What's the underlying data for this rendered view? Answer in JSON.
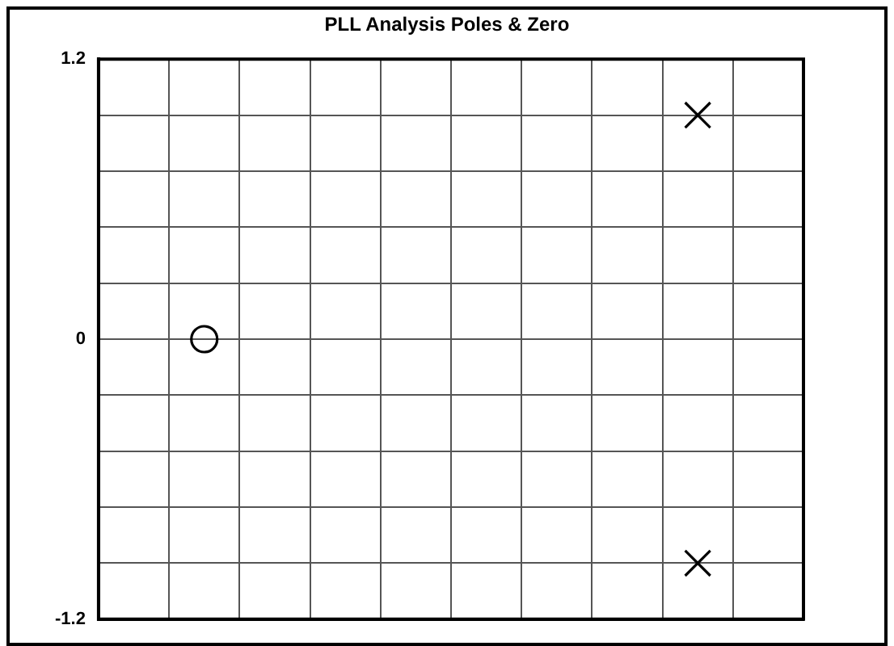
{
  "chart_data": {
    "type": "scatter",
    "title": "PLL Analysis Poles & Zero",
    "categories": [
      null,
      null,
      null,
      null,
      null,
      null,
      null,
      null,
      null,
      null
    ],
    "series": [
      {
        "marker": "circle",
        "color": "#000000",
        "values": [
          null,
          0,
          null,
          null,
          null,
          null,
          null,
          null,
          null,
          null
        ]
      },
      {
        "marker": "cross",
        "color": "#000000",
        "values": [
          null,
          null,
          null,
          null,
          null,
          null,
          null,
          null,
          0.96,
          null
        ]
      },
      {
        "marker": "cross",
        "color": "#000000",
        "values": [
          null,
          null,
          null,
          null,
          null,
          null,
          null,
          null,
          -0.96,
          null
        ]
      }
    ],
    "ylim": [
      -1.2,
      1.2
    ],
    "yticks": [
      -1.2,
      {
        "value": -0.96,
        "label": null
      },
      {
        "value": -0.72,
        "label": null
      },
      {
        "value": -0.48,
        "label": null
      },
      {
        "value": -0.24,
        "label": null
      },
      0,
      {
        "value": 0.24,
        "label": null
      },
      {
        "value": 0.48,
        "label": null
      },
      {
        "value": 0.72,
        "label": null
      },
      {
        "value": 0.96,
        "label": null
      },
      1.2
    ],
    "grid": true,
    "legend": false,
    "tick_labels": "y"
  }
}
